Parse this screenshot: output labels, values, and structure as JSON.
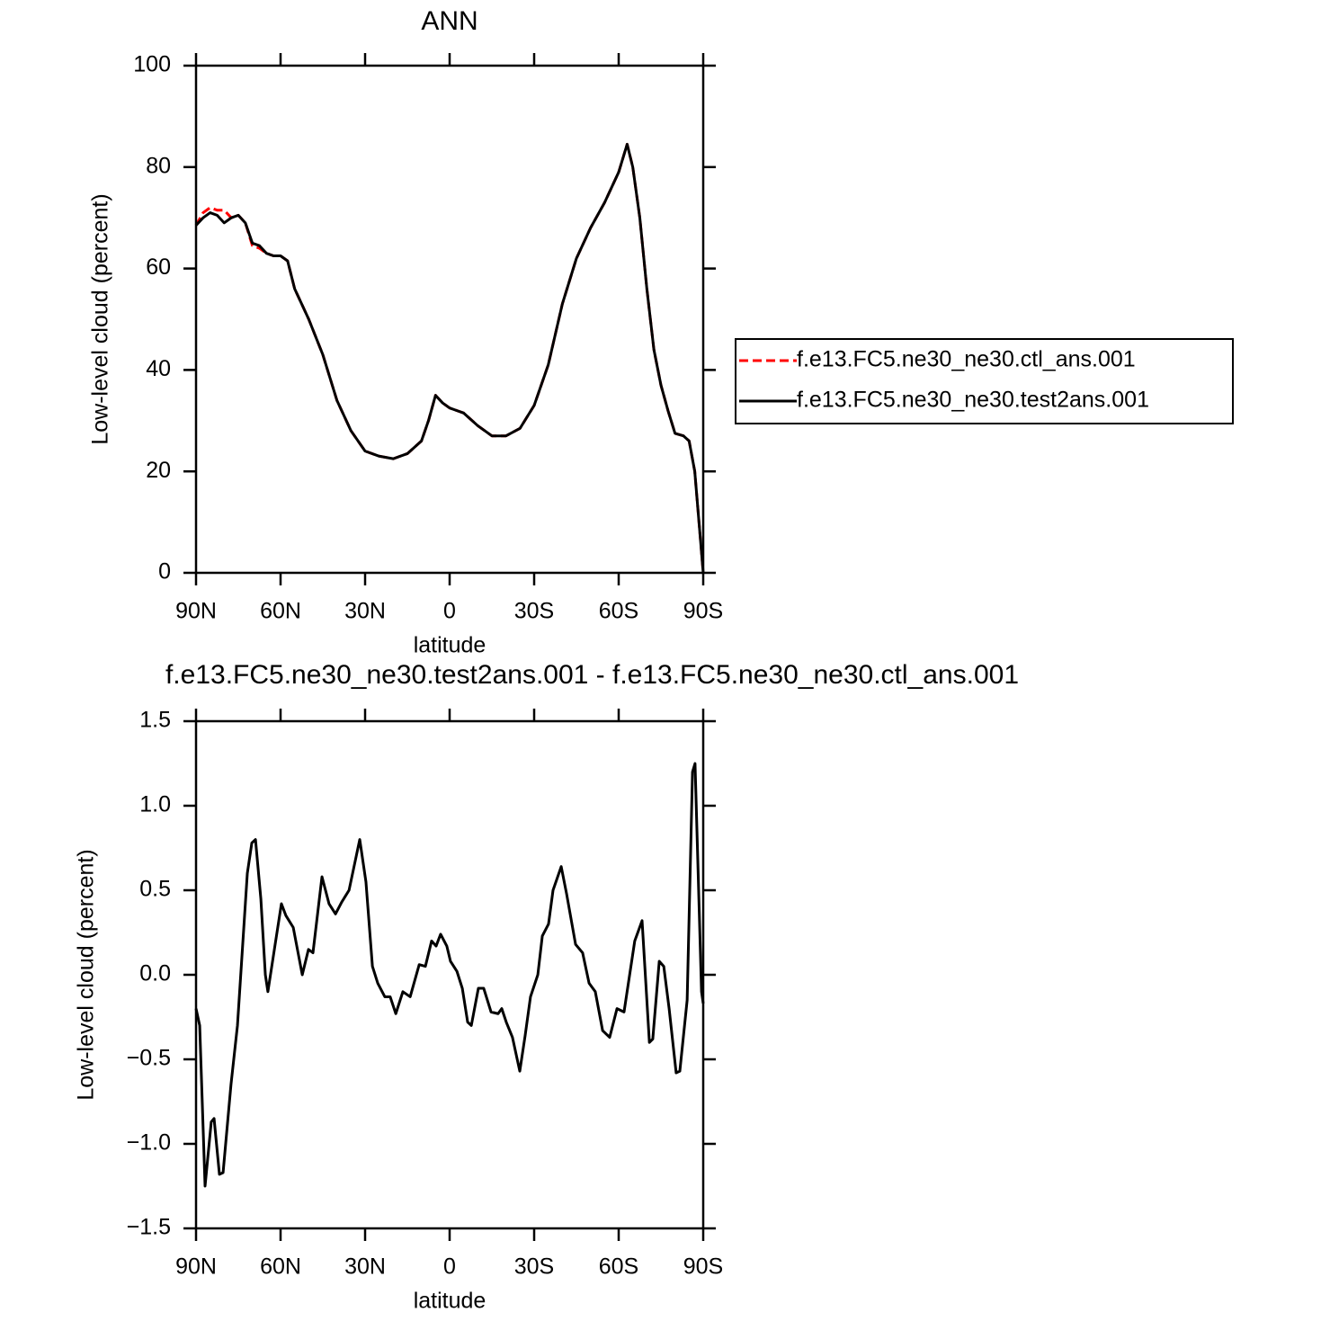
{
  "chart_data": [
    {
      "type": "line",
      "title": "ANN",
      "x_label": "latitude",
      "y_label": "Low-level cloud (percent)",
      "x": [
        90,
        87.5,
        85,
        82.5,
        80,
        77.5,
        75,
        72.5,
        70,
        67.5,
        65,
        62.5,
        60,
        57.5,
        55,
        50,
        45,
        40,
        35,
        30,
        25,
        20,
        15,
        10,
        7.5,
        5,
        2.5,
        0,
        -5,
        -10,
        -15,
        -20,
        -25,
        -30,
        -35,
        -40,
        -45,
        -50,
        -55,
        -60,
        -63,
        -65,
        -67.5,
        -70,
        -72.5,
        -75,
        -77.5,
        -80,
        -83,
        -85,
        -87,
        -88.5,
        -90
      ],
      "series": [
        {
          "name": "f.e13.FC5.ne30_ne30.ctl_ans.001",
          "color": "#ff0000",
          "style": "dashed",
          "values": [
            68.5,
            71,
            72,
            71.5,
            71.5,
            70,
            70.5,
            69,
            64.5,
            64,
            63,
            62.5,
            62.5,
            61.5,
            56,
            50,
            43,
            34,
            28,
            24,
            23,
            22.5,
            23.5,
            26,
            30,
            35,
            33.5,
            32.5,
            31.5,
            29,
            27,
            27,
            28.5,
            33,
            41,
            53,
            62,
            68,
            73,
            79,
            84.5,
            80,
            70,
            56,
            44,
            37,
            32,
            27.5,
            27,
            26,
            20,
            10,
            0
          ]
        },
        {
          "name": "f.e13.FC5.ne30_ne30.test2ans.001",
          "color": "#000000",
          "style": "solid",
          "values": [
            68.5,
            70,
            71,
            70.5,
            69,
            70,
            70.5,
            69,
            65,
            64.5,
            63,
            62.5,
            62.5,
            61.5,
            56,
            50,
            43,
            34,
            28,
            24,
            23,
            22.5,
            23.5,
            26,
            30,
            35,
            33.5,
            32.5,
            31.5,
            29,
            27,
            27,
            28.5,
            33,
            41,
            53,
            62,
            68,
            73,
            79,
            84.5,
            80,
            70,
            56,
            44,
            37,
            32,
            27.5,
            27,
            26,
            20,
            10,
            0
          ]
        }
      ],
      "xlim": [
        90,
        -90
      ],
      "xticks": [
        {
          "value": 90,
          "label": "90N"
        },
        {
          "value": 60,
          "label": "60N"
        },
        {
          "value": 30,
          "label": "30N"
        },
        0,
        {
          "value": -30,
          "label": "30S"
        },
        {
          "value": -60,
          "label": "60S"
        },
        {
          "value": -90,
          "label": "90S"
        }
      ],
      "ylim": [
        0,
        100
      ],
      "yticks": [
        0,
        20,
        40,
        60,
        80,
        100
      ],
      "legend": "right"
    },
    {
      "type": "line",
      "title": "f.e13.FC5.ne30_ne30.test2ans.001 - f.e13.FC5.ne30_ne30.ctl_ans.001",
      "x_label": "latitude",
      "y_label": "Low-level cloud (percent)",
      "x": [
        90,
        88.7,
        86.8,
        84.6,
        83.6,
        81.7,
        80.4,
        77.6,
        75.3,
        71.8,
        70.2,
        68.9,
        67.0,
        65.4,
        64.5,
        62.2,
        59.7,
        58.1,
        55.5,
        52.3,
        50.1,
        48.5,
        45.3,
        42.8,
        40.5,
        38.3,
        35.7,
        31.9,
        29.7,
        27.4,
        25.5,
        23.0,
        21.1,
        19.1,
        16.6,
        14.0,
        10.8,
        8.6,
        6.4,
        4.8,
        3.2,
        1.0,
        -0.3,
        -2.6,
        -4.5,
        -6.4,
        -7.7,
        -10.2,
        -12.1,
        -14.7,
        -17.2,
        -18.5,
        -20.1,
        -22.3,
        -24.9,
        -26.8,
        -28.7,
        -31.3,
        -32.9,
        -35.1,
        -36.7,
        -39.6,
        -41.5,
        -44.7,
        -47.2,
        -49.5,
        -51.7,
        -54.3,
        -56.8,
        -59.4,
        -61.9,
        -65.7,
        -68.3,
        -70.9,
        -72.1,
        -74.4,
        -76.0,
        -77.9,
        -80.4,
        -81.7,
        -84.3,
        -86.2,
        -87.1,
        -89.4,
        -90
      ],
      "series": [
        {
          "color": "#000000",
          "style": "solid",
          "values": [
            -0.2,
            -0.3,
            -1.25,
            -0.87,
            -0.85,
            -1.18,
            -1.17,
            -0.65,
            -0.3,
            0.6,
            0.78,
            0.8,
            0.45,
            0.0,
            -0.1,
            0.15,
            0.42,
            0.35,
            0.28,
            0.0,
            0.15,
            0.13,
            0.58,
            0.42,
            0.36,
            0.43,
            0.5,
            0.8,
            0.55,
            0.05,
            -0.05,
            -0.13,
            -0.13,
            -0.23,
            -0.1,
            -0.13,
            0.06,
            0.05,
            0.2,
            0.17,
            0.24,
            0.17,
            0.08,
            0.02,
            -0.08,
            -0.28,
            -0.3,
            -0.08,
            -0.08,
            -0.22,
            -0.23,
            -0.2,
            -0.28,
            -0.37,
            -0.57,
            -0.36,
            -0.13,
            0.0,
            0.23,
            0.3,
            0.5,
            0.64,
            0.48,
            0.18,
            0.13,
            -0.05,
            -0.1,
            -0.33,
            -0.37,
            -0.2,
            -0.22,
            0.2,
            0.32,
            -0.4,
            -0.38,
            0.08,
            0.05,
            -0.2,
            -0.58,
            -0.57,
            -0.15,
            1.2,
            1.25,
            -0.1,
            -0.17
          ]
        }
      ],
      "xlim": [
        90,
        -90
      ],
      "xticks": [
        {
          "value": 90,
          "label": "90N"
        },
        {
          "value": 60,
          "label": "60N"
        },
        {
          "value": 30,
          "label": "30N"
        },
        0,
        {
          "value": -30,
          "label": "30S"
        },
        {
          "value": -60,
          "label": "60S"
        },
        {
          "value": -90,
          "label": "90S"
        }
      ],
      "ylim": [
        -1.5,
        1.5
      ],
      "yticks": [
        {
          "value": -1.5,
          "label": "−1.5"
        },
        {
          "value": -1.0,
          "label": "−1.0"
        },
        {
          "value": -0.5,
          "label": "−0.5"
        },
        {
          "value": 0,
          "label": "0.0"
        },
        0.5,
        {
          "value": 1.0,
          "label": "1.0"
        },
        1.5
      ]
    }
  ]
}
